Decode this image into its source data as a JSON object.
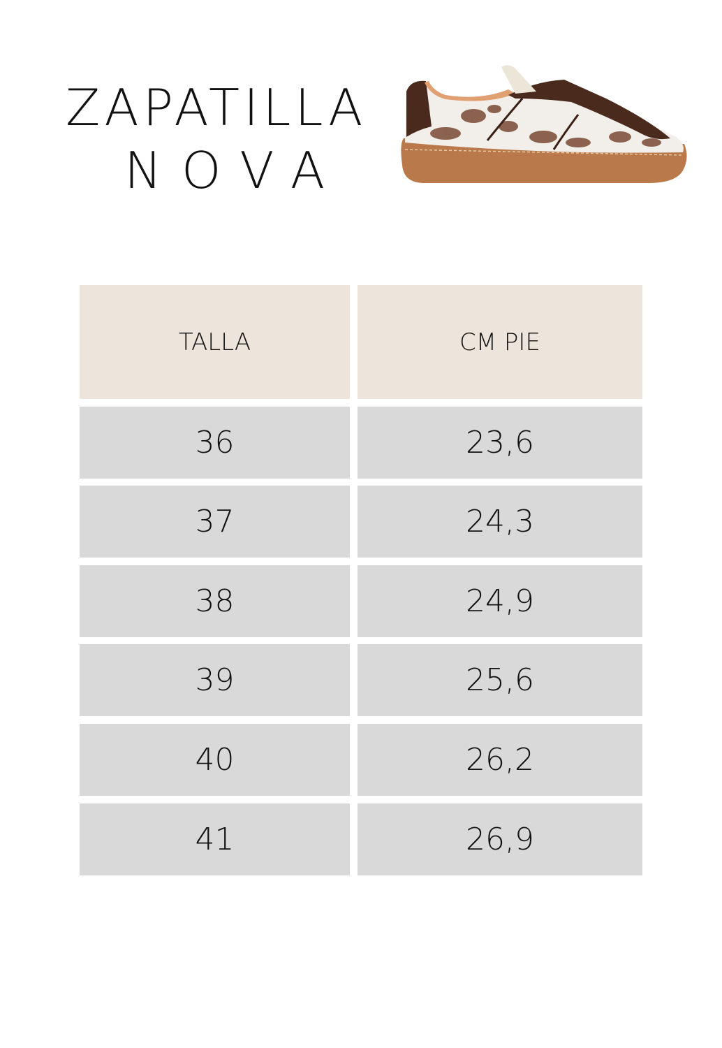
{
  "title": {
    "line1": "ZAPATILLA",
    "line2": "NOVA"
  },
  "product_image": {
    "icon": "sneaker-image",
    "description_colors": {
      "upper": "#f2efea",
      "spots": "#7a4a35",
      "suede": "#4a2a1c",
      "sole": "#b9794a"
    }
  },
  "table": {
    "headers": [
      "TALLA",
      "CM PIE"
    ],
    "rows": [
      [
        "36",
        "23,6"
      ],
      [
        "37",
        "24,3"
      ],
      [
        "38",
        "24,9"
      ],
      [
        "39",
        "25,6"
      ],
      [
        "40",
        "26,2"
      ],
      [
        "41",
        "26,9"
      ]
    ]
  },
  "colors": {
    "header_bg": "#ede5db",
    "row_bg": "#d9d9d9"
  }
}
